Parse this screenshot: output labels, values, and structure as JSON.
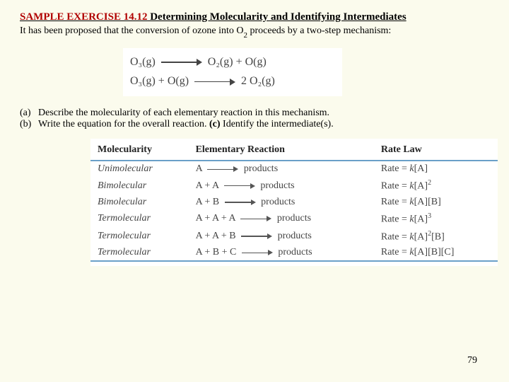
{
  "title": {
    "red": "SAMPLE EXERCISE 14.12",
    "rest": " Determining Molecularity and Identifying Intermediates"
  },
  "intro": {
    "pre": "It has been proposed that the conversion of ozone into O",
    "subnum": "2",
    "post": " proceeds by a two-step mechanism:"
  },
  "mechanism": {
    "line1": {
      "lhs": "O₃(g)",
      "rhs": "O₂(g) + O(g)"
    },
    "line2": {
      "lhs": "O₃(g) + O(g)",
      "rhs": "2 O₂(g)"
    }
  },
  "questions": {
    "a": {
      "label": "(a)",
      "text": "Describe the molecularity of each elementary reaction in this mechanism."
    },
    "b": {
      "label": "(b)",
      "text_pre": "Write the equation for the overall reaction. ",
      "c_label": "(c)",
      "c_text": " Identify the intermediate(s)."
    }
  },
  "table": {
    "headers": {
      "c1": "Molecularity",
      "c2": "Elementary Reaction",
      "c3": "Rate Law"
    },
    "rows": [
      {
        "mol": "Unimolecular",
        "lhs": "A",
        "rhs": "products",
        "rate": "Rate = k[A]"
      },
      {
        "mol": "Bimolecular",
        "lhs": "A + A",
        "rhs": "products",
        "rate_html": "Rate = <span class=\"it\">k</span>[A]<span class=\"sup\">2</span>"
      },
      {
        "mol": "Bimolecular",
        "lhs": "A + B",
        "rhs": "products",
        "rate": "Rate = k[A][B]"
      },
      {
        "mol": "Termolecular",
        "lhs": "A + A + A",
        "rhs": "products",
        "rate_html": "Rate = <span class=\"it\">k</span>[A]<span class=\"sup\">3</span>"
      },
      {
        "mol": "Termolecular",
        "lhs": "A + A + B",
        "rhs": "products",
        "rate_html": "Rate = <span class=\"it\">k</span>[A]<span class=\"sup\">2</span>[B]"
      },
      {
        "mol": "Termolecular",
        "lhs": "A + B + C",
        "rhs": "products",
        "rate": "Rate = k[A][B][C]"
      }
    ]
  },
  "pagenum": "79"
}
